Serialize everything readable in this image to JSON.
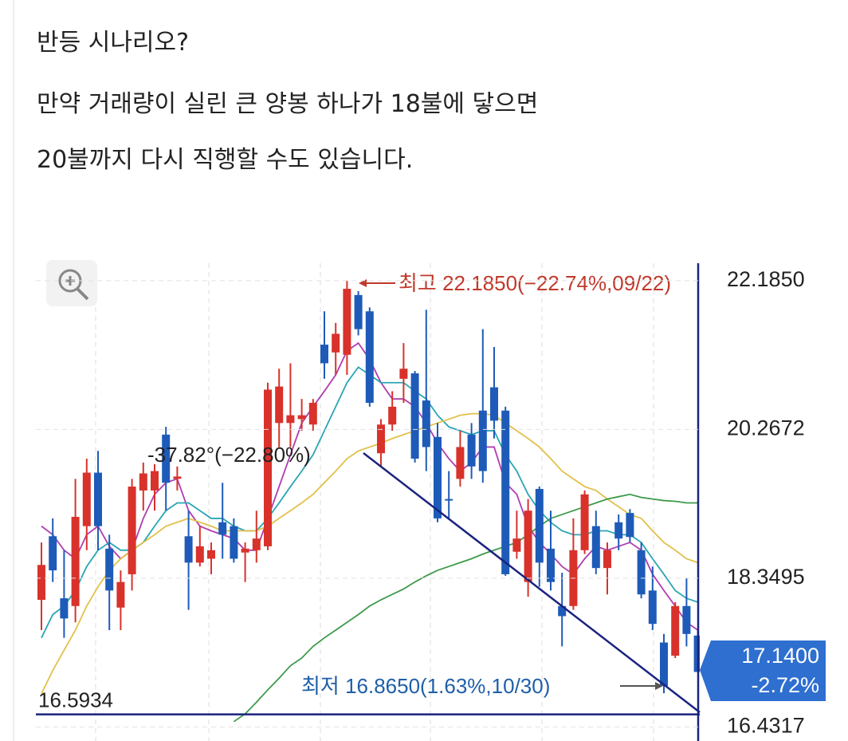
{
  "paragraphs": [
    "반등 시나리오?",
    "만약 거래량이 실린 큰 양봉 하나가 18불에 닿으면",
    "20불까지 다시 직행할 수도 있습니다."
  ],
  "chart_data": {
    "type": "candlestick",
    "ylim": [
      16.25,
      22.41
    ],
    "yticks": [
      {
        "value": 22.185,
        "label": "22.1850"
      },
      20.2672,
      18.3495,
      16.4317
    ],
    "grid": true,
    "up_color": "#d8322b",
    "down_color": "#1e5bb8",
    "candles": {
      "open": [
        18.07,
        18.89,
        18.09,
        17.99,
        19.02,
        19.71,
        18.73,
        17.97,
        18.4,
        19.48,
        19.48,
        20.2,
        19.63,
        18.89,
        18.55,
        18.6,
        19.07,
        19.02,
        18.68,
        18.71,
        18.76,
        20.35,
        20.35,
        20.4,
        20.33,
        21.36,
        21.26,
        21.23,
        22.0,
        21.79,
        19.96,
        20.33,
        20.92,
        20.99,
        20.64,
        20.17,
        19.37,
        19.63,
        20.2,
        20.51,
        20.81,
        20.51,
        18.69,
        18.3,
        19.5,
        18.73,
        17.99,
        17.99,
        18.71,
        19.02,
        18.48,
        19.07,
        19.19,
        18.71,
        18.19,
        17.52,
        17.35,
        17.99,
        17.61
      ],
      "high": [
        18.81,
        19.12,
        18.71,
        19.63,
        19.89,
        19.99,
        18.91,
        18.45,
        19.63,
        19.84,
        19.82,
        20.3,
        19.79,
        19.22,
        19.02,
        18.81,
        19.58,
        19.12,
        18.81,
        19.22,
        20.87,
        21.05,
        21.12,
        20.66,
        20.66,
        21.79,
        21.64,
        22.185,
        22.05,
        21.84,
        20.4,
        20.76,
        21.38,
        21.02,
        21.81,
        20.35,
        19.73,
        20.25,
        20.35,
        21.56,
        21.33,
        20.56,
        19.22,
        19.37,
        19.53,
        19.22,
        18.42,
        19.12,
        19.48,
        19.22,
        18.81,
        19.17,
        19.24,
        18.81,
        18.5,
        17.63,
        18.04,
        18.35,
        17.68
      ],
      "low": [
        17.68,
        18.3,
        17.58,
        17.78,
        18.71,
        18.71,
        17.68,
        17.68,
        18.19,
        19.22,
        19.22,
        19.22,
        19.48,
        17.94,
        18.5,
        18.4,
        18.6,
        18.55,
        18.3,
        18.55,
        18.71,
        20.04,
        20.04,
        20.25,
        20.25,
        20.92,
        20.97,
        20.97,
        21.48,
        20.56,
        19.79,
        20.25,
        20.61,
        19.84,
        19.73,
        19.07,
        19.12,
        19.53,
        19.63,
        19.58,
        20.15,
        18.38,
        18.6,
        18.11,
        18.24,
        18.19,
        17.47,
        17.94,
        18.66,
        18.4,
        18.14,
        18.71,
        18.81,
        18.09,
        17.68,
        16.865,
        17.32,
        17.47,
        17.14
      ],
      "close": [
        18.52,
        18.45,
        17.83,
        19.14,
        19.71,
        19.02,
        18.19,
        18.3,
        19.53,
        19.7,
        19.73,
        19.58,
        19.66,
        18.55,
        18.76,
        18.71,
        18.91,
        18.6,
        18.73,
        18.86,
        20.78,
        20.82,
        20.45,
        20.45,
        20.61,
        21.12,
        21.5,
        22.08,
        21.56,
        20.61,
        20.33,
        20.56,
        21.05,
        19.89,
        20.04,
        19.12,
        19.35,
        20.04,
        19.79,
        19.73,
        20.38,
        18.4,
        18.86,
        19.22,
        18.55,
        18.3,
        17.86,
        18.71,
        19.43,
        18.48,
        18.71,
        18.86,
        18.88,
        18.14,
        17.76,
        16.96,
        17.99,
        17.63,
        17.14
      ]
    },
    "lines": [
      {
        "color": "#b03cb0",
        "values": [
          19.02,
          18.91,
          18.71,
          18.6,
          18.91,
          19.02,
          18.76,
          18.6,
          18.71,
          19.12,
          19.43,
          19.58,
          19.63,
          19.22,
          19.02,
          18.96,
          18.91,
          18.86,
          18.71,
          18.71,
          19.12,
          19.53,
          19.94,
          20.35,
          20.56,
          20.76,
          20.97,
          21.28,
          21.38,
          21.17,
          20.87,
          20.66,
          20.66,
          20.56,
          20.35,
          20.09,
          19.89,
          19.73,
          19.84,
          20.04,
          20.04,
          19.58,
          19.43,
          19.02,
          18.81,
          18.66,
          18.5,
          18.4,
          18.6,
          18.76,
          18.71,
          18.76,
          18.81,
          18.71,
          18.4,
          18.19,
          17.99,
          17.78,
          17.68
        ]
      },
      {
        "color": "#2aa5b5",
        "values": [
          17.58,
          17.88,
          17.99,
          18.19,
          18.5,
          18.71,
          18.81,
          18.71,
          18.71,
          18.81,
          19.02,
          19.22,
          19.32,
          19.32,
          19.22,
          19.12,
          19.12,
          19.02,
          18.96,
          18.96,
          19.12,
          19.32,
          19.53,
          19.73,
          19.94,
          20.25,
          20.56,
          20.87,
          21.07,
          20.97,
          20.87,
          20.87,
          20.87,
          20.76,
          20.66,
          20.45,
          20.3,
          20.25,
          20.2,
          20.25,
          20.25,
          19.94,
          19.73,
          19.43,
          19.22,
          19.07,
          18.96,
          18.91,
          18.91,
          18.96,
          18.96,
          18.91,
          18.91,
          18.81,
          18.6,
          18.4,
          18.19,
          18.09,
          18.04
        ]
      },
      {
        "color": "#e3c04a",
        "values": [
          16.86,
          17.16,
          17.42,
          17.68,
          17.99,
          18.24,
          18.45,
          18.6,
          18.71,
          18.81,
          18.91,
          19.02,
          19.07,
          19.12,
          19.07,
          19.02,
          18.96,
          18.96,
          18.96,
          18.96,
          19.02,
          19.12,
          19.22,
          19.32,
          19.43,
          19.58,
          19.73,
          19.89,
          19.99,
          20.04,
          20.09,
          20.15,
          20.2,
          20.25,
          20.3,
          20.35,
          20.4,
          20.45,
          20.47,
          20.47,
          20.45,
          20.35,
          20.25,
          20.15,
          20.04,
          19.89,
          19.73,
          19.63,
          19.53,
          19.48,
          19.37,
          19.27,
          19.17,
          19.12,
          18.96,
          18.81,
          18.71,
          18.6,
          18.55
        ]
      },
      {
        "color": "#3f9a4c",
        "values": [
          null,
          null,
          null,
          null,
          null,
          null,
          null,
          null,
          null,
          null,
          null,
          null,
          null,
          null,
          null,
          null,
          null,
          16.5,
          16.6,
          16.75,
          16.91,
          17.06,
          17.22,
          17.32,
          17.47,
          17.58,
          17.68,
          17.78,
          17.88,
          17.99,
          18.07,
          18.14,
          18.21,
          18.3,
          18.38,
          18.45,
          18.5,
          18.55,
          18.6,
          18.66,
          18.71,
          18.76,
          18.81,
          18.91,
          19.02,
          19.12,
          19.17,
          19.22,
          19.27,
          19.32,
          19.37,
          19.4,
          19.43,
          19.39,
          19.37,
          19.35,
          19.34,
          19.32,
          19.32
        ]
      }
    ],
    "hline": 16.5934,
    "last_price": {
      "value": 17.14,
      "label": "17.1400"
    },
    "last_change": {
      "value": -2.72,
      "label": "-2.72%"
    },
    "high_annotation": "최고 22.1850(−22.74%,09/22)",
    "low_annotation": "최저 16.8650(1.63%,10/30)",
    "trend_annotation": "-37.82°(−22.80%)"
  }
}
